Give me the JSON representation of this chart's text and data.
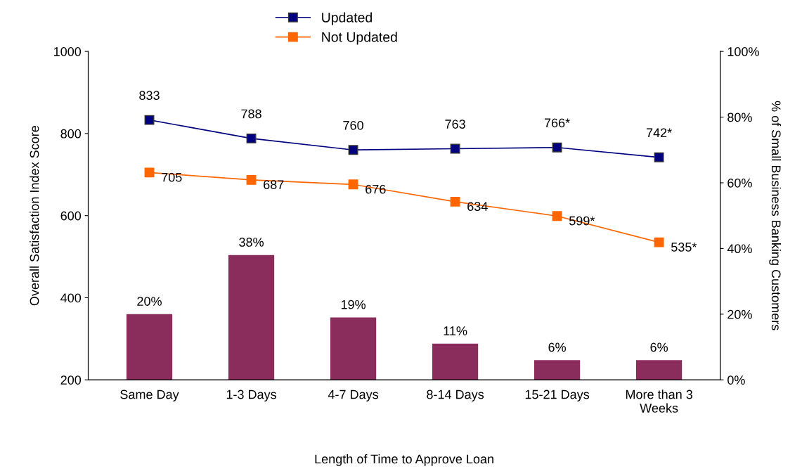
{
  "chart_data": {
    "type": "line",
    "xlabel": "Length of Time to Approve Loan",
    "ylabel": "Overall Satisfaction Index Score",
    "y2label": "% of Small Business Banking Customers",
    "categories": [
      "Same Day",
      "1-3 Days",
      "4-7 Days",
      "8-14 Days",
      "15-21 Days",
      "More than 3 Weeks"
    ],
    "series": [
      {
        "type": "bar",
        "axis": "y2",
        "color": "#8b2d5c",
        "values": [
          20,
          38,
          19,
          11,
          6,
          6
        ],
        "value_labels": [
          "20%",
          "38%",
          "19%",
          "11%",
          "6%",
          "6%"
        ]
      },
      {
        "name": "Updated",
        "color": "#000080",
        "values": [
          833,
          788,
          760,
          763,
          766,
          742
        ],
        "value_labels": [
          "833",
          "788",
          "760",
          "763",
          "766*",
          "742*"
        ]
      },
      {
        "name": "Not Updated",
        "color": "#ff6600",
        "values": [
          705,
          687,
          676,
          634,
          599,
          535
        ],
        "value_labels": [
          "705",
          "687",
          "676",
          "634",
          "599*",
          "535*"
        ]
      }
    ],
    "ylim": [
      200,
      1000
    ],
    "yticks": [
      200,
      400,
      600,
      800,
      1000
    ],
    "y2lim": [
      0,
      100
    ],
    "y2ticks": [
      {
        "value": 0,
        "label": "0%"
      },
      {
        "value": 20,
        "label": "20%"
      },
      {
        "value": 40,
        "label": "40%"
      },
      {
        "value": 60,
        "label": "60%"
      },
      {
        "value": 80,
        "label": "80%"
      },
      {
        "value": 100,
        "label": "100%"
      }
    ],
    "marker": "square",
    "line_style": "solid",
    "grid": false,
    "legend": "top"
  }
}
